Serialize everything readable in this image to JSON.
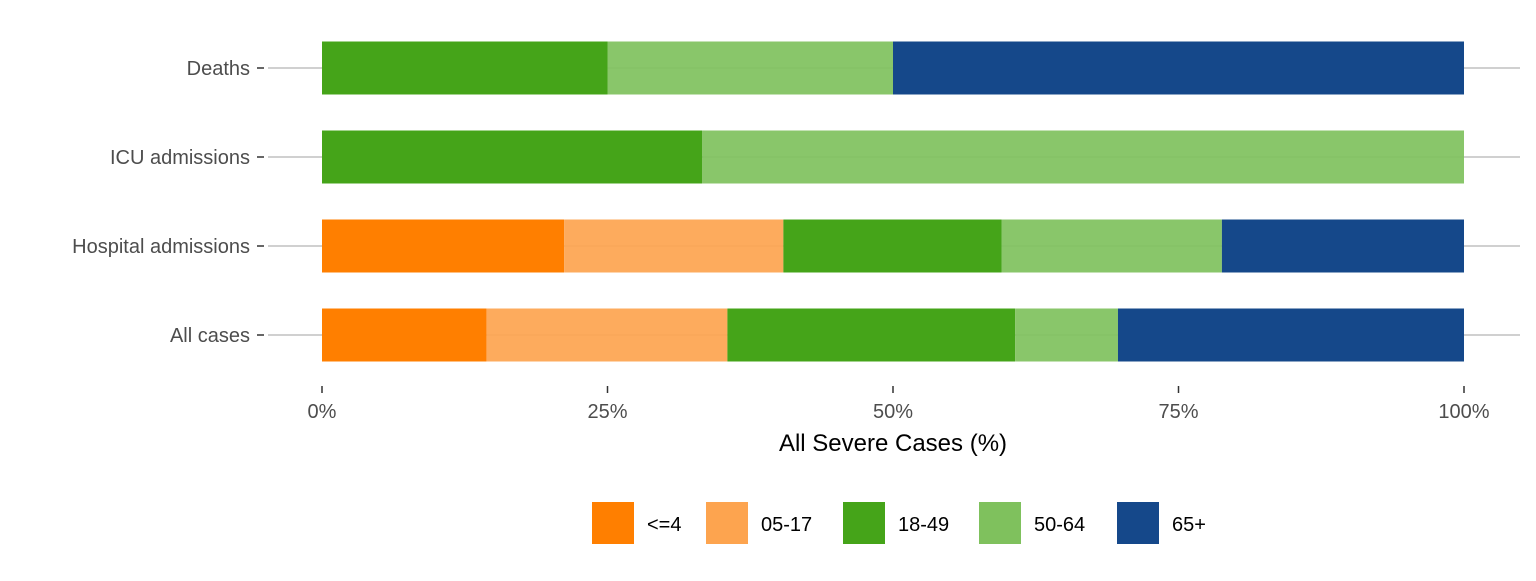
{
  "chart_data": {
    "type": "bar",
    "orientation": "horizontal",
    "stacked": true,
    "title": "",
    "xlabel": "All Severe Cases (%)",
    "ylabel": "",
    "xlim": [
      0,
      100
    ],
    "xticks": [
      0,
      25,
      50,
      75,
      100
    ],
    "xtick_labels": [
      "0%",
      "25%",
      "50%",
      "75%",
      "100%"
    ],
    "grid": "horizontal lines at categories",
    "legend_position": "bottom",
    "categories": [
      "All cases",
      "Hospital admissions",
      "ICU admissions",
      "Deaths"
    ],
    "series": [
      {
        "name": "<=4",
        "color": "#FF7F00",
        "values": [
          14.4,
          21.2,
          0,
          0
        ]
      },
      {
        "name": "05-17",
        "color": "#FDA44F",
        "values": [
          21.1,
          19.2,
          0,
          0
        ]
      },
      {
        "name": "18-49",
        "color": "#45A419",
        "values": [
          25.2,
          19.1,
          33.3,
          25
        ]
      },
      {
        "name": "50-64",
        "color": "#7FC15D",
        "values": [
          9.0,
          19.3,
          66.7,
          25
        ]
      },
      {
        "name": "65+",
        "color": "#15488A",
        "values": [
          30.3,
          21.2,
          0,
          50
        ]
      }
    ]
  }
}
